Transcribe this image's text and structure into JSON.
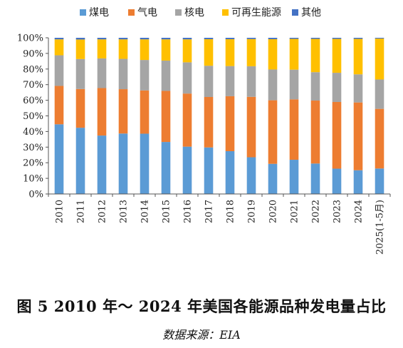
{
  "chart_data": {
    "type": "bar",
    "stacked": true,
    "categories": [
      "2010",
      "2011",
      "2012",
      "2013",
      "2014",
      "2015",
      "2016",
      "2017",
      "2018",
      "2019",
      "2020",
      "2021",
      "2022",
      "2023",
      "2024",
      "2025(1-5月)"
    ],
    "series": [
      {
        "name": "煤电",
        "color": "#5b9bd5",
        "values": [
          44.6,
          42.4,
          37.4,
          38.7,
          38.6,
          33.3,
          30.3,
          29.8,
          27.4,
          23.5,
          19.3,
          21.9,
          19.5,
          16.2,
          15.2,
          16.3
        ]
      },
      {
        "name": "气电",
        "color": "#ed7d31",
        "values": [
          24.6,
          24.8,
          30.4,
          28.4,
          27.7,
          32.7,
          34.0,
          32.3,
          35.2,
          38.7,
          40.7,
          38.7,
          40.3,
          42.7,
          43.4,
          38.2
        ]
      },
      {
        "name": "核电",
        "color": "#a5a5a5",
        "values": [
          19.6,
          19.2,
          19.0,
          19.4,
          19.5,
          19.4,
          20.0,
          20.0,
          19.3,
          19.6,
          19.7,
          19.0,
          18.2,
          18.7,
          18.0,
          18.8
        ]
      },
      {
        "name": "可再生能源",
        "color": "#ffc000",
        "values": [
          10.2,
          12.5,
          12.2,
          12.5,
          13.2,
          13.6,
          14.7,
          17.0,
          17.2,
          17.4,
          19.4,
          19.7,
          21.3,
          21.7,
          22.7,
          26.2
        ]
      },
      {
        "name": "其他",
        "color": "#4472c4",
        "values": [
          1.0,
          1.1,
          1.0,
          1.0,
          1.0,
          1.0,
          1.0,
          0.9,
          0.9,
          0.8,
          0.9,
          0.7,
          0.7,
          0.7,
          0.7,
          0.5
        ]
      }
    ],
    "y_ticks": [
      "0%",
      "10%",
      "20%",
      "30%",
      "40%",
      "50%",
      "60%",
      "70%",
      "80%",
      "90%",
      "100%"
    ],
    "ylim": [
      0,
      100
    ],
    "legend_position": "top",
    "grid": false
  },
  "caption": {
    "title": "图 5   2010 年～ 2024 年美国各能源品种发电量占比",
    "source": "数据来源：EIA"
  }
}
